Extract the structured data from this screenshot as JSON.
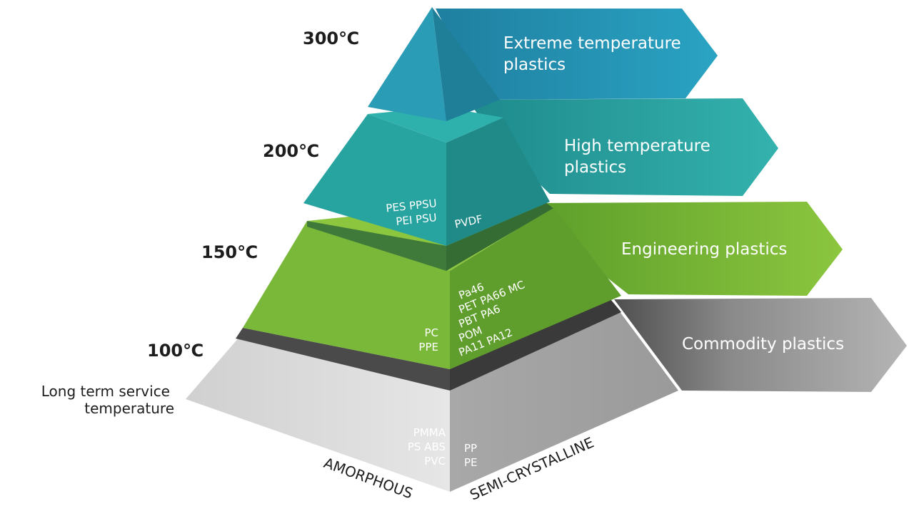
{
  "temperatures": {
    "t300": "300℃",
    "t200": "200℃",
    "t150": "150℃",
    "t100": "100℃"
  },
  "service_label": [
    "Long term service",
    "temperature"
  ],
  "categories": {
    "extreme": [
      "Extreme temperature",
      "plastics"
    ],
    "high": [
      "High temperature",
      "plastics"
    ],
    "engineering": "Engineering plastics",
    "commodity": "Commodity plastics"
  },
  "materials": {
    "high_amorphous": [
      "PES PPSU",
      "PEI PSU"
    ],
    "high_semi": "PVDF",
    "eng_amorphous": [
      "PC",
      "PPE"
    ],
    "eng_semi": [
      "Pa46",
      "PET PA66 MC",
      "PBT PA6",
      "POM",
      "PA11 PA12"
    ],
    "commodity_amorphous": [
      "PMMA",
      "PS ABS",
      "PVC"
    ],
    "commodity_semi": [
      "PP",
      "PE"
    ]
  },
  "axes": {
    "amorphous": "AMORPHOUS",
    "semi_crystalline": "SEMI-CRYSTALLINE"
  },
  "colors": {
    "extreme": "#2a9cb5",
    "high": "#27a3a0",
    "engineering": "#7bb83a",
    "commodity": "#a7a7a7"
  }
}
